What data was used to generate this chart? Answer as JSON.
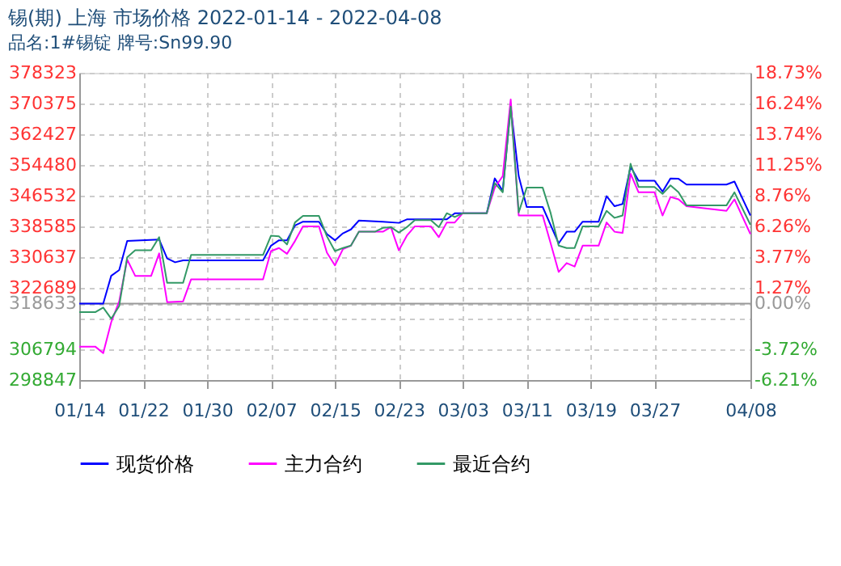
{
  "chart_data": {
    "type": "line",
    "title": "锡(期) 上海 市场价格 2022-01-14 - 2022-04-08",
    "subtitle": "品名:1#锡锭 牌号:Sn99.90",
    "xlim": [
      "2022-01-14",
      "2022-04-08"
    ],
    "xticks": [
      {
        "value": "2022-01-14",
        "label": "01/14"
      },
      {
        "value": "2022-01-22",
        "label": "01/22"
      },
      {
        "value": "2022-01-30",
        "label": "01/30"
      },
      {
        "value": "2022-02-07",
        "label": "02/07"
      },
      {
        "value": "2022-02-15",
        "label": "02/15"
      },
      {
        "value": "2022-02-23",
        "label": "02/23"
      },
      {
        "value": "2022-03-03",
        "label": "03/03"
      },
      {
        "value": "2022-03-11",
        "label": "03/11"
      },
      {
        "value": "2022-03-19",
        "label": "03/19"
      },
      {
        "value": "2022-03-27",
        "label": "03/27"
      },
      {
        "value": "2022-04-08",
        "label": "04/08"
      }
    ],
    "ylim": [
      298847,
      378323
    ],
    "yticks": [
      298847,
      306794,
      {
        "value": 314741,
        "label": null
      },
      318633,
      322689,
      330637,
      338585,
      346532,
      354480,
      362427,
      370375,
      378323
    ],
    "y2lim": [
      -6.21,
      18.73
    ],
    "y2ticks": [
      {
        "value": -6.21,
        "label": "-6.21%"
      },
      {
        "value": -3.72,
        "label": "-3.72%"
      },
      {
        "value": 0,
        "label": "0.00%"
      },
      {
        "value": 1.27,
        "label": "1.27%"
      },
      {
        "value": 3.77,
        "label": "3.77%"
      },
      {
        "value": 6.26,
        "label": "6.26%"
      },
      {
        "value": 8.76,
        "label": "8.76%"
      },
      {
        "value": 11.25,
        "label": "11.25%"
      },
      {
        "value": 13.74,
        "label": "13.74%"
      },
      {
        "value": 16.24,
        "label": "16.24%"
      },
      {
        "value": 18.73,
        "label": "18.73%"
      }
    ],
    "ref_lines": [
      {
        "axis": "y2",
        "value": 0,
        "color": "#999999",
        "line_style": "solid"
      }
    ],
    "grid": true,
    "legend": "bottom",
    "marker": "none",
    "line_style": "solid",
    "series": [
      {
        "name": "现货价格",
        "color": "#0000ff",
        "x": [
          "2022-01-14",
          "2022-01-17",
          "2022-01-18",
          "2022-01-19",
          "2022-01-20",
          "2022-01-24",
          "2022-01-25",
          "2022-01-26",
          "2022-01-27",
          "2022-02-06",
          "2022-02-07",
          "2022-02-08",
          "2022-02-09",
          "2022-02-10",
          "2022-02-11",
          "2022-02-13",
          "2022-02-14",
          "2022-02-15",
          "2022-02-16",
          "2022-02-17",
          "2022-02-18",
          "2022-02-21",
          "2022-02-23",
          "2022-02-24",
          "2022-03-01",
          "2022-03-02",
          "2022-03-06",
          "2022-03-07",
          "2022-03-08",
          "2022-03-09",
          "2022-03-10",
          "2022-03-11",
          "2022-03-13",
          "2022-03-15",
          "2022-03-16",
          "2022-03-17",
          "2022-03-18",
          "2022-03-20",
          "2022-03-21",
          "2022-03-22",
          "2022-03-23",
          "2022-03-24",
          "2022-03-25",
          "2022-03-27",
          "2022-03-28",
          "2022-03-29",
          "2022-03-30",
          "2022-03-31",
          "2022-04-05",
          "2022-04-06",
          "2022-04-08"
        ],
        "values": [
          318600,
          318600,
          325800,
          327300,
          334800,
          335200,
          330300,
          329300,
          329800,
          329800,
          333600,
          335000,
          335000,
          338800,
          339800,
          339800,
          336600,
          335000,
          336800,
          337800,
          340100,
          339800,
          339500,
          340400,
          340400,
          342000,
          342000,
          351000,
          347800,
          369600,
          351600,
          343600,
          343600,
          334200,
          337200,
          337200,
          339800,
          339800,
          346400,
          343800,
          344400,
          354000,
          350400,
          350400,
          347600,
          351000,
          350900,
          349400,
          349400,
          350200,
          341400
        ]
      },
      {
        "name": "主力合约",
        "color": "#ff00ff",
        "x": [
          "2022-01-14",
          "2022-01-16",
          "2022-01-17",
          "2022-01-18",
          "2022-01-19",
          "2022-01-20",
          "2022-01-21",
          "2022-01-23",
          "2022-01-24",
          "2022-01-25",
          "2022-01-27",
          "2022-01-28",
          "2022-02-06",
          "2022-02-07",
          "2022-02-08",
          "2022-02-09",
          "2022-02-10",
          "2022-02-11",
          "2022-02-13",
          "2022-02-14",
          "2022-02-15",
          "2022-02-16",
          "2022-02-17",
          "2022-02-18",
          "2022-02-21",
          "2022-02-22",
          "2022-02-23",
          "2022-02-24",
          "2022-02-25",
          "2022-02-27",
          "2022-02-28",
          "2022-03-01",
          "2022-03-02",
          "2022-03-03",
          "2022-03-06",
          "2022-03-07",
          "2022-03-08",
          "2022-03-09",
          "2022-03-10",
          "2022-03-13",
          "2022-03-14",
          "2022-03-15",
          "2022-03-16",
          "2022-03-17",
          "2022-03-18",
          "2022-03-20",
          "2022-03-21",
          "2022-03-22",
          "2022-03-23",
          "2022-03-24",
          "2022-03-25",
          "2022-03-27",
          "2022-03-28",
          "2022-03-29",
          "2022-03-30",
          "2022-03-31",
          "2022-04-05",
          "2022-04-06",
          "2022-04-08"
        ],
        "values": [
          307500,
          307500,
          305800,
          313800,
          319200,
          330000,
          325800,
          325800,
          331600,
          319000,
          319200,
          324900,
          324900,
          332200,
          333000,
          331500,
          334800,
          338600,
          338600,
          331800,
          328500,
          332700,
          333600,
          337200,
          337200,
          338400,
          332400,
          336200,
          338600,
          338600,
          335800,
          339600,
          339600,
          342000,
          342000,
          348600,
          351600,
          371400,
          341400,
          341400,
          334200,
          326800,
          329100,
          328200,
          333600,
          333600,
          339600,
          337200,
          336900,
          352200,
          347400,
          347400,
          341400,
          346200,
          345600,
          343800,
          342600,
          345600,
          336600
        ]
      },
      {
        "name": "最近合约",
        "color": "#339966",
        "x": [
          "2022-01-14",
          "2022-01-16",
          "2022-01-17",
          "2022-01-18",
          "2022-01-19",
          "2022-01-20",
          "2022-01-21",
          "2022-01-23",
          "2022-01-24",
          "2022-01-25",
          "2022-01-27",
          "2022-01-28",
          "2022-02-06",
          "2022-02-07",
          "2022-02-08",
          "2022-02-09",
          "2022-02-10",
          "2022-02-11",
          "2022-02-13",
          "2022-02-14",
          "2022-02-15",
          "2022-02-16",
          "2022-02-17",
          "2022-02-18",
          "2022-02-20",
          "2022-02-21",
          "2022-02-22",
          "2022-02-23",
          "2022-02-24",
          "2022-02-25",
          "2022-02-27",
          "2022-02-28",
          "2022-03-01",
          "2022-03-02",
          "2022-03-03",
          "2022-03-06",
          "2022-03-07",
          "2022-03-08",
          "2022-03-09",
          "2022-03-10",
          "2022-03-11",
          "2022-03-13",
          "2022-03-14",
          "2022-03-15",
          "2022-03-16",
          "2022-03-17",
          "2022-03-18",
          "2022-03-20",
          "2022-03-21",
          "2022-03-22",
          "2022-03-23",
          "2022-03-24",
          "2022-03-25",
          "2022-03-27",
          "2022-03-28",
          "2022-03-29",
          "2022-03-30",
          "2022-03-31",
          "2022-04-05",
          "2022-04-06",
          "2022-04-08"
        ],
        "values": [
          316400,
          316400,
          317600,
          314700,
          318000,
          330600,
          332400,
          332400,
          335800,
          324000,
          324000,
          331200,
          331200,
          336200,
          336000,
          333900,
          339600,
          341300,
          341300,
          336000,
          332200,
          333000,
          333600,
          337200,
          337200,
          338200,
          338400,
          337000,
          338400,
          340200,
          340200,
          338400,
          342000,
          341000,
          342000,
          342000,
          349800,
          347400,
          369600,
          342200,
          348600,
          348600,
          342000,
          333600,
          333000,
          333000,
          338600,
          338600,
          342600,
          340800,
          341400,
          354800,
          348800,
          348800,
          347000,
          349200,
          347400,
          344000,
          344000,
          347400,
          339000
        ]
      }
    ]
  }
}
